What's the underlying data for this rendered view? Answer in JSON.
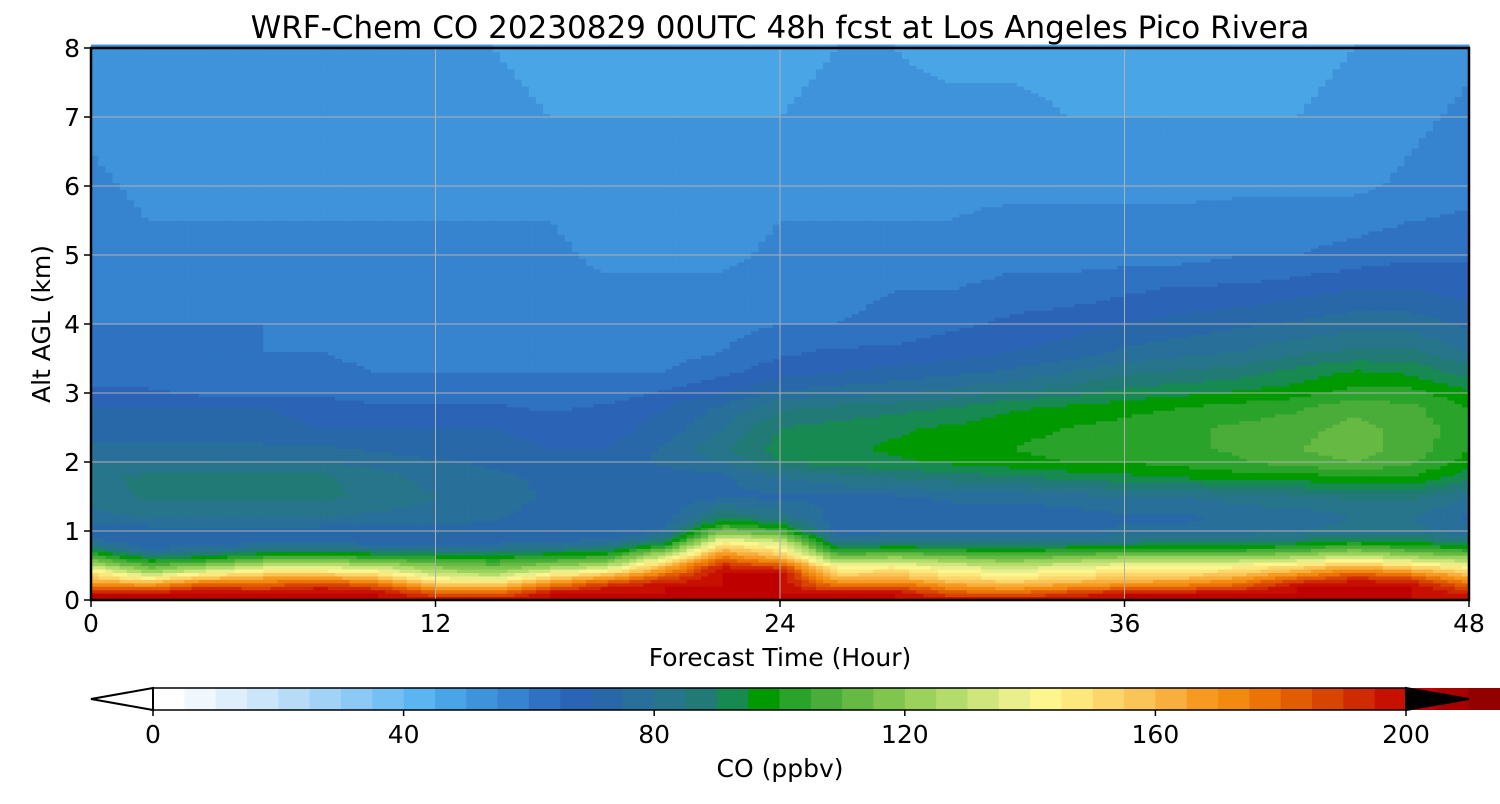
{
  "chart_data": {
    "type": "heatmap",
    "title": "WRF-Chem CO  20230829 00UTC 48h fcst at Los Angeles Pico Rivera",
    "xlabel": "Forecast Time (Hour)",
    "ylabel": "Alt AGL (km)",
    "xlim": [
      0,
      48
    ],
    "ylim": [
      0,
      8
    ],
    "x_ticks": [
      0,
      12,
      24,
      36,
      48
    ],
    "y_ticks": [
      0,
      1,
      2,
      3,
      4,
      5,
      6,
      7,
      8
    ],
    "grid": true,
    "colorbar": {
      "label": "CO  (ppbv)",
      "min": 0,
      "max": 200,
      "step": 5,
      "ticks": [
        0,
        40,
        80,
        120,
        160,
        200
      ],
      "extend": "both",
      "colors": [
        "#ffffff",
        "#f0f7fd",
        "#deeefb",
        "#cbe6f9",
        "#b7dcf7",
        "#a2d3f6",
        "#8ccaf5",
        "#74c0f4",
        "#5bb5f0",
        "#4aa5e6",
        "#3f93da",
        "#3683cf",
        "#2f72c2",
        "#2b64b6",
        "#2968a8",
        "#286f9a",
        "#27758a",
        "#227a76",
        "#168a50",
        "#009900",
        "#2aa32a",
        "#4aad3a",
        "#66ba44",
        "#80c64e",
        "#9ad25c",
        "#b4dc6c",
        "#cee67c",
        "#e8ef8c",
        "#fdf68f",
        "#fde87e",
        "#fcd66a",
        "#fbc457",
        "#f9af3d",
        "#f79a22",
        "#f28a10",
        "#ec7406",
        "#e25c04",
        "#d84402",
        "#cf2a01",
        "#c81000",
        "#bf0000",
        "#a80000",
        "#920000",
        "#7c0000",
        "#640000",
        "#4c0000",
        "#360000",
        "#200000",
        "#0e0000",
        "#000000"
      ]
    },
    "profile_hours": [
      0,
      2,
      4,
      6,
      8,
      10,
      12,
      14,
      16,
      18,
      20,
      22,
      24,
      26,
      28,
      30,
      32,
      34,
      36,
      38,
      40,
      42,
      44,
      46,
      48
    ],
    "profile_altitudes_km": [
      0,
      0.1,
      0.2,
      0.3,
      0.4,
      0.5,
      0.6,
      0.7,
      0.8,
      0.9,
      1.0,
      1.2,
      1.5,
      1.8,
      2.0,
      2.2,
      2.5,
      2.8,
      3.0,
      3.3,
      3.6,
      4.0,
      4.5,
      5.0,
      6.0,
      7.0,
      8.0
    ],
    "co_ppbv": [
      [
        200,
        200,
        178,
        160,
        150,
        130,
        112,
        98,
        84,
        74,
        70,
        78,
        82,
        84,
        80,
        76,
        72,
        70,
        66,
        62,
        60,
        60,
        58,
        58,
        56,
        54,
        52
      ],
      [
        200,
        200,
        175,
        150,
        126,
        110,
        96,
        80,
        72,
        70,
        72,
        80,
        86,
        86,
        80,
        76,
        72,
        70,
        66,
        62,
        60,
        60,
        58,
        56,
        54,
        52,
        50
      ],
      [
        200,
        200,
        190,
        165,
        140,
        120,
        100,
        84,
        74,
        70,
        72,
        80,
        86,
        86,
        80,
        76,
        72,
        70,
        64,
        62,
        60,
        60,
        58,
        56,
        54,
        52,
        50
      ],
      [
        200,
        200,
        185,
        170,
        150,
        130,
        110,
        92,
        78,
        70,
        72,
        80,
        86,
        86,
        80,
        76,
        72,
        70,
        64,
        62,
        60,
        60,
        58,
        56,
        54,
        52,
        50
      ],
      [
        200,
        200,
        195,
        175,
        150,
        132,
        112,
        94,
        78,
        70,
        72,
        80,
        86,
        86,
        80,
        76,
        70,
        68,
        64,
        62,
        60,
        58,
        58,
        56,
        54,
        52,
        50
      ],
      [
        200,
        200,
        185,
        165,
        145,
        128,
        108,
        90,
        76,
        70,
        72,
        78,
        84,
        82,
        78,
        74,
        70,
        66,
        62,
        60,
        58,
        58,
        56,
        56,
        54,
        52,
        50
      ],
      [
        200,
        185,
        165,
        145,
        130,
        118,
        104,
        88,
        76,
        70,
        72,
        78,
        80,
        78,
        76,
        72,
        70,
        66,
        62,
        60,
        58,
        58,
        56,
        56,
        54,
        52,
        50
      ],
      [
        200,
        180,
        160,
        140,
        125,
        112,
        102,
        88,
        76,
        70,
        72,
        76,
        78,
        76,
        74,
        72,
        70,
        66,
        62,
        60,
        58,
        58,
        56,
        56,
        54,
        52,
        50
      ],
      [
        200,
        200,
        180,
        160,
        140,
        120,
        106,
        92,
        80,
        72,
        70,
        72,
        74,
        74,
        72,
        70,
        68,
        64,
        62,
        60,
        58,
        58,
        56,
        56,
        54,
        50,
        48
      ],
      [
        200,
        200,
        195,
        175,
        150,
        128,
        110,
        96,
        82,
        74,
        70,
        72,
        72,
        72,
        72,
        70,
        68,
        66,
        62,
        60,
        58,
        56,
        56,
        54,
        52,
        50,
        48
      ],
      [
        200,
        200,
        200,
        190,
        175,
        160,
        140,
        120,
        100,
        84,
        76,
        72,
        72,
        72,
        76,
        76,
        72,
        70,
        66,
        60,
        58,
        56,
        56,
        54,
        52,
        50,
        48
      ],
      [
        200,
        200,
        200,
        200,
        200,
        195,
        180,
        165,
        150,
        135,
        115,
        90,
        74,
        74,
        80,
        84,
        80,
        76,
        70,
        64,
        60,
        58,
        56,
        54,
        52,
        50,
        48
      ],
      [
        200,
        200,
        200,
        200,
        200,
        185,
        165,
        150,
        140,
        125,
        105,
        84,
        74,
        80,
        90,
        92,
        90,
        84,
        76,
        68,
        64,
        60,
        58,
        56,
        54,
        50,
        48
      ],
      [
        200,
        200,
        180,
        165,
        150,
        140,
        120,
        104,
        88,
        78,
        72,
        72,
        74,
        84,
        92,
        94,
        92,
        86,
        78,
        70,
        66,
        60,
        58,
        56,
        54,
        52,
        50
      ],
      [
        200,
        200,
        185,
        165,
        155,
        142,
        125,
        108,
        92,
        80,
        74,
        72,
        74,
        86,
        94,
        96,
        94,
        88,
        80,
        72,
        66,
        62,
        60,
        56,
        54,
        52,
        50
      ],
      [
        200,
        185,
        170,
        155,
        145,
        135,
        120,
        104,
        90,
        80,
        74,
        72,
        76,
        88,
        96,
        98,
        96,
        90,
        82,
        74,
        68,
        64,
        60,
        56,
        54,
        52,
        48
      ],
      [
        200,
        180,
        165,
        150,
        140,
        130,
        115,
        102,
        88,
        78,
        74,
        72,
        76,
        90,
        98,
        100,
        98,
        94,
        86,
        76,
        70,
        66,
        62,
        58,
        54,
        52,
        48
      ],
      [
        200,
        190,
        170,
        155,
        145,
        135,
        120,
        104,
        92,
        80,
        74,
        72,
        78,
        92,
        100,
        102,
        100,
        96,
        88,
        80,
        72,
        68,
        62,
        58,
        54,
        50,
        48
      ],
      [
        200,
        200,
        175,
        160,
        150,
        140,
        125,
        108,
        92,
        82,
        76,
        74,
        80,
        94,
        100,
        104,
        102,
        98,
        92,
        84,
        76,
        70,
        64,
        58,
        54,
        50,
        48
      ],
      [
        200,
        200,
        178,
        162,
        150,
        140,
        124,
        108,
        94,
        84,
        76,
        74,
        80,
        96,
        102,
        104,
        104,
        100,
        94,
        86,
        78,
        72,
        66,
        58,
        54,
        50,
        48
      ],
      [
        200,
        200,
        185,
        170,
        155,
        142,
        126,
        108,
        94,
        84,
        78,
        76,
        82,
        98,
        104,
        106,
        106,
        102,
        96,
        88,
        80,
        74,
        66,
        60,
        54,
        50,
        48
      ],
      [
        200,
        200,
        200,
        185,
        165,
        150,
        130,
        112,
        98,
        86,
        80,
        76,
        84,
        98,
        108,
        110,
        108,
        104,
        98,
        92,
        84,
        76,
        68,
        60,
        54,
        50,
        48
      ],
      [
        200,
        200,
        200,
        195,
        180,
        160,
        140,
        120,
        104,
        90,
        82,
        80,
        86,
        100,
        110,
        112,
        112,
        108,
        102,
        96,
        86,
        78,
        70,
        62,
        54,
        52,
        50
      ],
      [
        200,
        200,
        200,
        190,
        170,
        150,
        130,
        112,
        100,
        88,
        82,
        80,
        86,
        100,
        106,
        108,
        108,
        106,
        102,
        94,
        86,
        78,
        70,
        64,
        56,
        54,
        52
      ],
      [
        200,
        195,
        185,
        170,
        155,
        140,
        124,
        108,
        94,
        84,
        76,
        74,
        80,
        92,
        98,
        100,
        102,
        100,
        96,
        88,
        80,
        74,
        68,
        64,
        58,
        56,
        54
      ]
    ]
  }
}
